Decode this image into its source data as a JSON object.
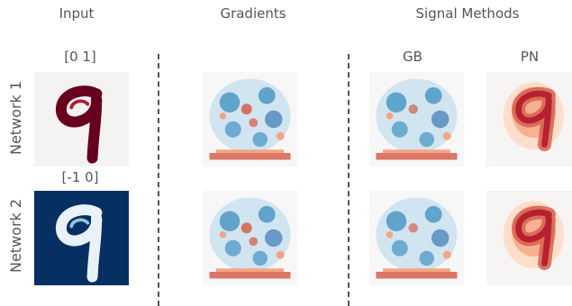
{
  "columns": {
    "input": "Input",
    "gradients": "Gradients",
    "signal_methods": "Signal Methods"
  },
  "subcolumns": {
    "gb": "GB",
    "pn": "PN"
  },
  "rows": [
    {
      "label": "Network 1",
      "range": "[0 1]"
    },
    {
      "label": "Network 2",
      "range": "[-1 0]"
    }
  ],
  "colors": {
    "digit_dark_red": "#67001f",
    "navy": "#053061",
    "light_blue": "#d1e5f0",
    "blue": "#4393c3",
    "red": "#d6604d",
    "near_white": "#f7f7f7"
  }
}
